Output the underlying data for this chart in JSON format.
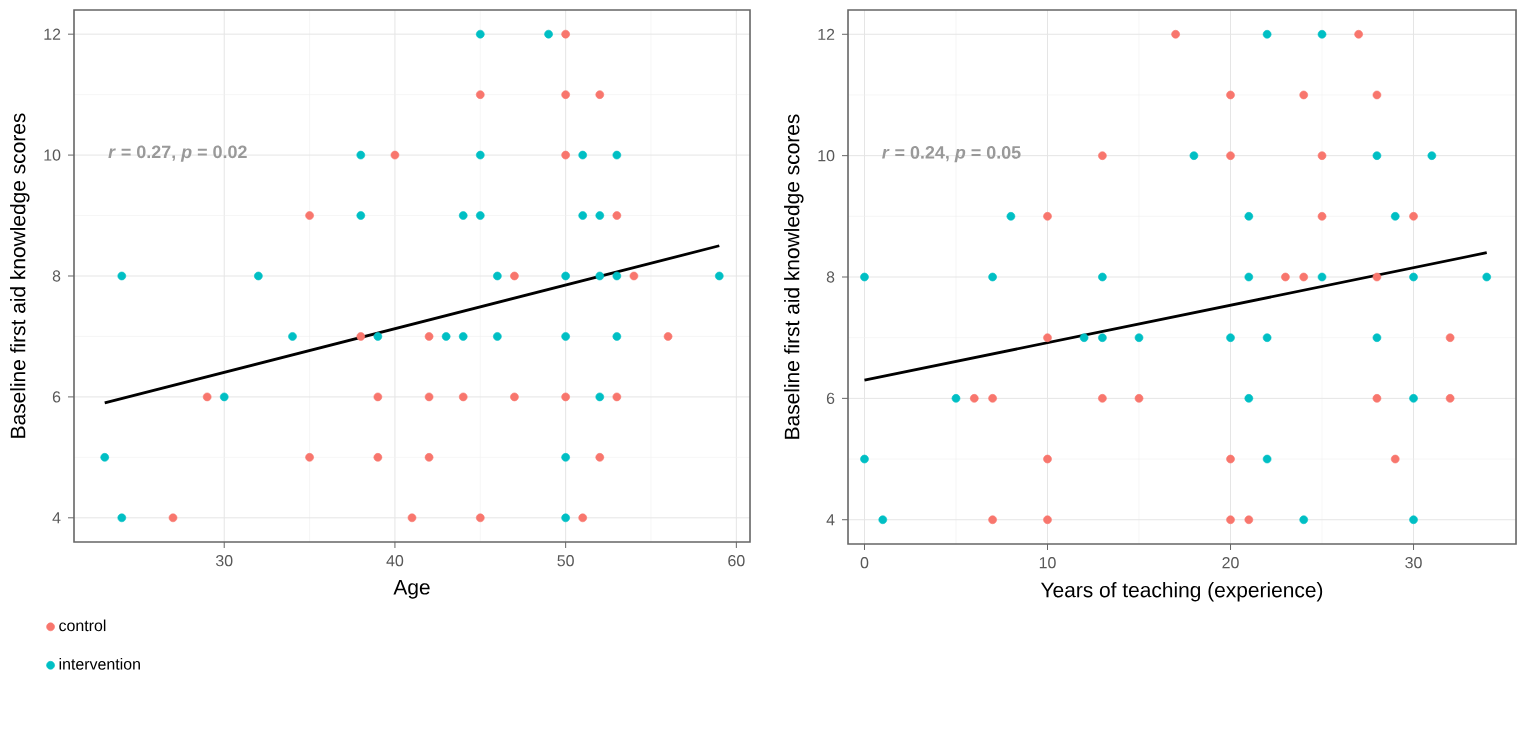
{
  "chart_data": [
    {
      "type": "scatter",
      "xlabel": "Age",
      "ylabel": "Baseline first aid knowledge scores",
      "annotations": [
        "*r* = 0.27, *p* = 0.02"
      ],
      "xlim": [
        21.2,
        60.8
      ],
      "ylim": [
        3.6,
        12.4
      ],
      "xticks": [
        30,
        40,
        50,
        60
      ],
      "yticks": [
        4,
        6,
        8,
        10,
        12
      ],
      "grid": true,
      "legend": "bottom left",
      "series": [
        {
          "name": "control",
          "color": "#f8766d",
          "x": [
            50,
            45,
            50,
            52,
            40,
            50,
            35,
            53,
            47,
            54,
            38,
            42,
            56,
            29,
            39,
            42,
            44,
            47,
            50,
            53,
            35,
            39,
            42,
            52,
            27,
            41,
            45,
            51
          ],
          "values": [
            12,
            11,
            11,
            11,
            10,
            10,
            9,
            9,
            8,
            8,
            7,
            7,
            7,
            6,
            6,
            6,
            6,
            6,
            6,
            6,
            5,
            5,
            5,
            5,
            4,
            4,
            4,
            4
          ]
        },
        {
          "name": "intervention",
          "color": "#00bfc4",
          "x": [
            45,
            49,
            38,
            45,
            51,
            53,
            38,
            44,
            45,
            51,
            52,
            24,
            32,
            46,
            50,
            52,
            53,
            59,
            34,
            39,
            43,
            44,
            46,
            50,
            53,
            30,
            52,
            23,
            50,
            24,
            50
          ],
          "values": [
            12,
            12,
            10,
            10,
            10,
            10,
            9,
            9,
            9,
            9,
            9,
            8,
            8,
            8,
            8,
            8,
            8,
            8,
            7,
            7,
            7,
            7,
            7,
            7,
            7,
            6,
            6,
            5,
            5,
            4,
            4
          ]
        },
        {
          "type": "line",
          "color": "#000000",
          "x": [
            23,
            59
          ],
          "values": [
            5.9,
            8.5
          ]
        }
      ]
    },
    {
      "type": "scatter",
      "xlabel": "Years of teaching (experience)",
      "ylabel": "Baseline first aid knowledge scores",
      "annotations": [
        "*r* = 0.24, *p* = 0.05"
      ],
      "xlim": [
        -0.9,
        35.6
      ],
      "ylim": [
        3.6,
        12.4
      ],
      "xticks": [
        0,
        10,
        20,
        30
      ],
      "yticks": [
        4,
        6,
        8,
        10,
        12
      ],
      "grid": true,
      "series": [
        {
          "color": "#f8766d",
          "x": [
            17,
            27,
            20,
            24,
            28,
            13,
            20,
            25,
            10,
            25,
            30,
            23,
            24,
            28,
            10,
            32,
            6,
            7,
            13,
            15,
            28,
            32,
            10,
            20,
            29,
            7,
            10,
            20,
            21
          ],
          "values": [
            12,
            12,
            11,
            11,
            11,
            10,
            10,
            10,
            9,
            9,
            9,
            8,
            8,
            8,
            7,
            7,
            6,
            6,
            6,
            6,
            6,
            6,
            5,
            5,
            5,
            4,
            4,
            4,
            4
          ]
        },
        {
          "color": "#00bfc4",
          "x": [
            22,
            25,
            18,
            28,
            31,
            8,
            21,
            29,
            0,
            7,
            13,
            21,
            25,
            30,
            34,
            12,
            13,
            15,
            20,
            22,
            28,
            5,
            21,
            30,
            0,
            22,
            1,
            24,
            30
          ],
          "values": [
            12,
            12,
            10,
            10,
            10,
            9,
            9,
            9,
            8,
            8,
            8,
            8,
            8,
            8,
            8,
            7,
            7,
            7,
            7,
            7,
            7,
            6,
            6,
            6,
            5,
            5,
            4,
            4,
            4
          ]
        },
        {
          "type": "line",
          "color": "#000000",
          "x": [
            0,
            34
          ],
          "values": [
            6.3,
            8.4
          ]
        }
      ]
    }
  ]
}
